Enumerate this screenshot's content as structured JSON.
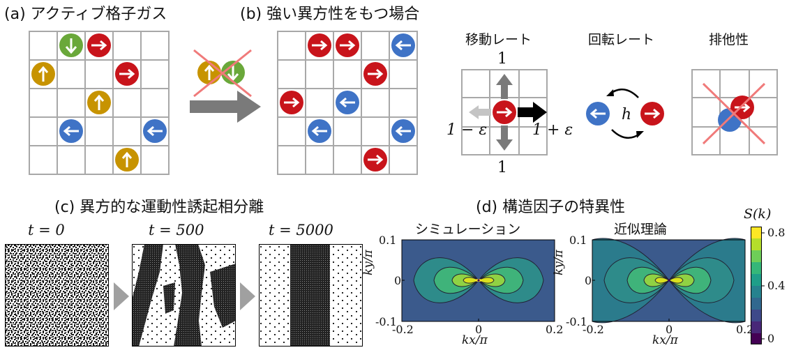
{
  "panel_a": {
    "title": "(a) アクティブ格子ガス"
  },
  "panel_b": {
    "title": "(b) 強い異方性をもつ場合",
    "label_move": "移動レート",
    "label_rotate": "回転レート",
    "label_exclusion": "排他性",
    "rate_up": "1",
    "rate_down": "1",
    "rate_left": "1 − ε",
    "rate_right": "1 + ε",
    "rate_rotation": "h"
  },
  "panel_c": {
    "title": "(c) 異方的な運動性誘起相分離",
    "snapshots": [
      "t = 0",
      "t = 500",
      "t = 5000"
    ]
  },
  "panel_d": {
    "title": "(d) 構造因子の特異性",
    "left_title": "シミュレーション",
    "right_title": "近似理論",
    "colorbar_label": "S(k)",
    "colorbar_ticks": [
      "0.8",
      "0.4",
      "0"
    ],
    "x_ticks": [
      "-0.2",
      "0",
      "0.2"
    ],
    "y_ticks": [
      "0.1",
      "0",
      "-0.1"
    ],
    "xlabel": "kx/π",
    "ylabel": "ky/π"
  },
  "colors": {
    "red": "#c8141b",
    "blue": "#3f73c6",
    "green": "#6aa83a",
    "gold": "#c79300",
    "grid": "#a8a8a8",
    "cross": "#f07a7a",
    "arrow_gray": "#7a7a7a",
    "arrow_light": "#c4c4c4"
  },
  "chart_data": [
    {
      "type": "heatmap",
      "title": "シミュレーション",
      "xlabel": "kx/π",
      "ylabel": "ky/π",
      "xlim": [
        -0.2,
        0.2
      ],
      "ylim": [
        -0.1,
        0.1
      ],
      "colorbar_range": [
        0,
        0.8
      ],
      "levels": [
        0.3,
        0.4,
        0.5,
        0.6,
        0.7
      ]
    },
    {
      "type": "heatmap",
      "title": "近似理論",
      "xlabel": "kx/π",
      "ylabel": "ky/π",
      "xlim": [
        -0.2,
        0.2
      ],
      "ylim": [
        -0.1,
        0.1
      ],
      "colorbar_range": [
        0,
        0.8
      ],
      "levels": [
        0.2,
        0.3,
        0.4,
        0.5,
        0.6,
        0.7
      ]
    }
  ]
}
